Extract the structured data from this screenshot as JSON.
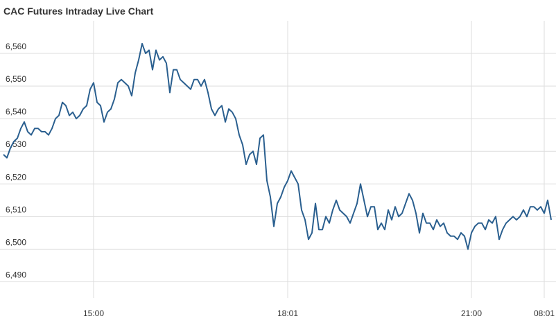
{
  "chart_data": {
    "type": "line",
    "title": "CAC Futures Intraday Live Chart",
    "x": [
      0,
      1,
      2,
      3,
      4,
      5,
      6,
      7,
      8,
      9,
      10,
      11,
      12,
      13,
      14,
      15,
      16,
      17,
      18,
      19,
      20,
      21,
      22,
      23,
      24,
      25,
      26,
      27,
      28,
      29,
      30,
      31,
      32,
      33,
      34,
      35,
      36,
      37,
      38,
      39,
      40,
      41,
      42,
      43,
      44,
      45,
      46,
      47,
      48,
      49,
      50,
      51,
      52,
      53,
      54,
      55,
      56,
      57,
      58,
      59,
      60,
      61,
      62,
      63,
      64,
      65,
      66,
      67,
      68,
      69,
      70,
      71,
      72,
      73,
      74,
      75,
      76,
      77,
      78,
      79,
      80,
      81,
      82,
      83,
      84,
      85,
      86,
      87,
      88,
      89,
      90,
      91,
      92,
      93,
      94,
      95,
      96,
      97,
      98,
      99,
      100,
      101,
      102,
      103,
      104,
      105,
      106,
      107,
      108,
      109,
      110,
      111,
      112,
      113,
      114,
      115,
      116,
      117,
      118,
      119,
      120,
      121,
      122,
      123,
      124,
      125,
      126,
      127,
      128,
      129,
      130,
      131,
      132,
      133,
      134,
      135,
      136,
      137,
      138,
      139,
      140,
      141,
      142,
      143,
      144,
      145,
      146,
      147,
      148,
      149,
      150,
      151,
      152,
      153,
      154,
      155,
      156,
      157,
      158
    ],
    "series": [
      {
        "name": "CAC Futures",
        "color": "#2a5f8f",
        "values": [
          6529,
          6528,
          6531,
          6533,
          6534,
          6537,
          6539,
          6536,
          6535,
          6537,
          6537,
          6536,
          6536,
          6535,
          6537,
          6540,
          6541,
          6545,
          6544,
          6541,
          6542,
          6540,
          6541,
          6543,
          6544,
          6549,
          6551,
          6545,
          6544,
          6539,
          6542,
          6543,
          6546,
          6551,
          6552,
          6551,
          6550,
          6547,
          6554,
          6558,
          6563,
          6560,
          6561,
          6555,
          6561,
          6558,
          6559,
          6557,
          6548,
          6555,
          6555,
          6552,
          6551,
          6550,
          6549,
          6552,
          6552,
          6550,
          6552,
          6548,
          6543,
          6541,
          6543,
          6544,
          6539,
          6543,
          6542,
          6540,
          6535,
          6532,
          6526,
          6529,
          6530,
          6526,
          6534,
          6535,
          6521,
          6516,
          6507,
          6514,
          6516,
          6519,
          6521,
          6524,
          6522,
          6520,
          6512,
          6509,
          6503,
          6505,
          6514,
          6506,
          6506,
          6510,
          6508,
          6512,
          6515,
          6512,
          6511,
          6510,
          6508,
          6511,
          6514,
          6520,
          6515,
          6510,
          6513,
          6513,
          6506,
          6508,
          6506,
          6512,
          6509,
          6513,
          6510,
          6511,
          6514,
          6517,
          6515,
          6511,
          6505,
          6511,
          6508,
          6508,
          6506,
          6509,
          6507,
          6508,
          6505,
          6504,
          6504,
          6503,
          6505,
          6504,
          6500,
          6505,
          6507,
          6508,
          6508,
          6506,
          6509,
          6508,
          6510,
          6503,
          6506,
          6508,
          6509,
          6510,
          6509,
          6510,
          6512,
          6510,
          6513,
          6513,
          6512,
          6513,
          6511,
          6515,
          6509
        ]
      }
    ],
    "xlim": [
      0,
      158
    ],
    "xticks": [
      {
        "value": 26,
        "label": "15:00"
      },
      {
        "value": 82,
        "label": "18:01"
      },
      {
        "value": 135,
        "label": "21:00"
      },
      {
        "value": 156,
        "label": "08:01"
      }
    ],
    "ylim": [
      6485,
      6570
    ],
    "yticks": [
      {
        "value": 6490,
        "label": "6,490"
      },
      {
        "value": 6500,
        "label": "6,500"
      },
      {
        "value": 6510,
        "label": "6,510"
      },
      {
        "value": 6520,
        "label": "6,520"
      },
      {
        "value": 6530,
        "label": "6,530"
      },
      {
        "value": 6540,
        "label": "6,540"
      },
      {
        "value": 6550,
        "label": "6,550"
      },
      {
        "value": 6560,
        "label": "6,560"
      }
    ],
    "grid": true
  }
}
